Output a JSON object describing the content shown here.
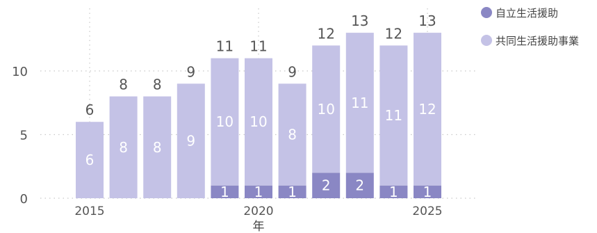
{
  "chart_data": {
    "type": "bar",
    "stacked": true,
    "x": [
      2015,
      2016,
      2017,
      2018,
      2019,
      2020,
      2021,
      2022,
      2023,
      2024,
      2025
    ],
    "series": [
      {
        "name": "自立生活援助",
        "values": [
          0,
          0,
          0,
          0,
          1,
          1,
          1,
          2,
          2,
          1,
          1
        ],
        "color": "#8a87c4"
      },
      {
        "name": "共同生活援助事業",
        "values": [
          6,
          8,
          8,
          9,
          10,
          10,
          8,
          10,
          11,
          11,
          12
        ],
        "color": "#c4c2e6"
      }
    ],
    "totals": [
      6,
      8,
      8,
      9,
      11,
      11,
      9,
      12,
      13,
      12,
      13
    ],
    "xlabel": "年",
    "ylabel": "",
    "ylim": [
      0,
      13
    ],
    "yticks": [
      0,
      5,
      10
    ],
    "xticks": [
      2015,
      2020,
      2025
    ],
    "grid": "dotted",
    "legend_position": "top-right"
  }
}
